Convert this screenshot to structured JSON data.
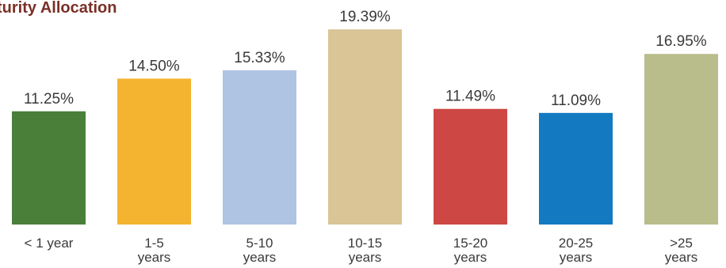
{
  "chart_data": {
    "type": "bar",
    "title": "turity Allocation",
    "xlabel": "",
    "ylabel": "",
    "ylim": [
      0,
      20
    ],
    "grid": false,
    "legend": "none",
    "categories": [
      "< 1 year",
      "1-5 years",
      "5-10 years",
      "10-15 years",
      "15-20 years",
      "20-25 years",
      ">25 years"
    ],
    "category_lines": [
      [
        "< 1 year"
      ],
      [
        "1-5",
        "years"
      ],
      [
        "5-10",
        "years"
      ],
      [
        "10-15",
        "years"
      ],
      [
        "15-20",
        "years"
      ],
      [
        "20-25",
        "years"
      ],
      [
        ">25",
        "years"
      ]
    ],
    "values": [
      11.25,
      14.5,
      15.33,
      19.39,
      11.49,
      11.09,
      16.95
    ],
    "value_labels": [
      "11.25%",
      "14.50%",
      "15.33%",
      "19.39%",
      "11.49%",
      "11.09%",
      "16.95%"
    ],
    "colors": [
      "#4a7f3a",
      "#f5b430",
      "#afc4e3",
      "#d9c595",
      "#cd4844",
      "#1379c1",
      "#b8bd8b"
    ]
  }
}
